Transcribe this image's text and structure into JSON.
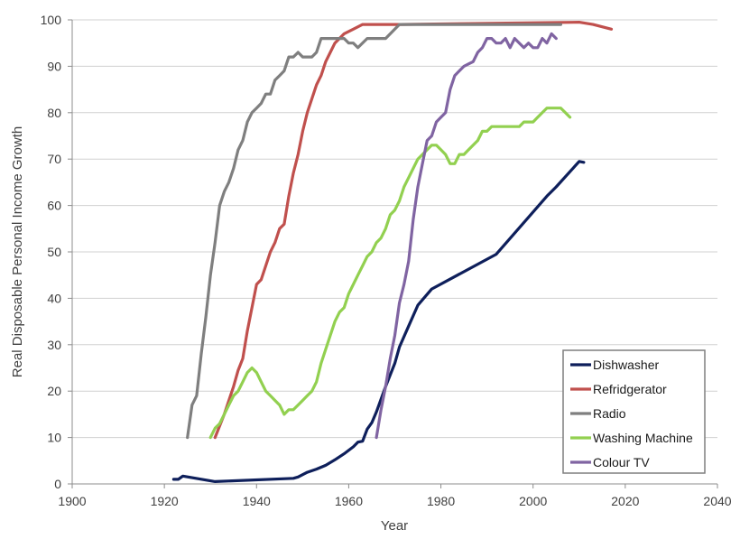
{
  "chart_data": {
    "type": "line",
    "title": "",
    "xlabel": "Year",
    "ylabel": "Real Disposable Personal Income Growth",
    "xlim": [
      1900,
      2040
    ],
    "ylim": [
      0,
      100
    ],
    "x_ticks": [
      1900,
      1920,
      1940,
      1960,
      1980,
      2000,
      2020,
      2040
    ],
    "y_ticks": [
      0,
      10,
      20,
      30,
      40,
      50,
      60,
      70,
      80,
      90,
      100
    ],
    "grid": "horizontal",
    "legend_position": "bottom-right",
    "series": [
      {
        "name": "Dishwasher",
        "color": "#0e1f5b",
        "points": [
          [
            1922,
            1
          ],
          [
            1923,
            1
          ],
          [
            1924,
            1.7
          ],
          [
            1931,
            0.5
          ],
          [
            1948,
            1.2
          ],
          [
            1949,
            1.5
          ],
          [
            1951,
            2.5
          ],
          [
            1953,
            3.2
          ],
          [
            1955,
            4
          ],
          [
            1957,
            5.2
          ],
          [
            1959,
            6.5
          ],
          [
            1961,
            8
          ],
          [
            1962,
            9
          ],
          [
            1963,
            9.2
          ],
          [
            1964,
            11.8
          ],
          [
            1965,
            13.2
          ],
          [
            1966,
            15.5
          ],
          [
            1968,
            21
          ],
          [
            1970,
            26
          ],
          [
            1971,
            29.5
          ],
          [
            1973,
            34
          ],
          [
            1975,
            38.5
          ],
          [
            1978,
            42
          ],
          [
            1992,
            49.5
          ],
          [
            2003,
            62
          ],
          [
            2005,
            64
          ],
          [
            2010,
            69.5
          ],
          [
            2011,
            69.3
          ]
        ]
      },
      {
        "name": "Refridgerator",
        "color": "#c0504d",
        "points": [
          [
            1931,
            10
          ],
          [
            1933,
            15
          ],
          [
            1935,
            21
          ],
          [
            1936,
            24.5
          ],
          [
            1937,
            27
          ],
          [
            1938,
            33
          ],
          [
            1939,
            38
          ],
          [
            1940,
            43
          ],
          [
            1941,
            44
          ],
          [
            1942,
            47
          ],
          [
            1943,
            50
          ],
          [
            1944,
            52
          ],
          [
            1945,
            55
          ],
          [
            1946,
            56
          ],
          [
            1947,
            62
          ],
          [
            1948,
            67
          ],
          [
            1949,
            71
          ],
          [
            1950,
            76
          ],
          [
            1951,
            80
          ],
          [
            1952,
            83
          ],
          [
            1953,
            86
          ],
          [
            1954,
            88
          ],
          [
            1955,
            91
          ],
          [
            1956,
            93
          ],
          [
            1957,
            95
          ],
          [
            1959,
            97
          ],
          [
            1961,
            98
          ],
          [
            1963,
            99
          ],
          [
            1971,
            99
          ],
          [
            2010,
            99.5
          ],
          [
            2013,
            99
          ],
          [
            2017,
            98
          ]
        ]
      },
      {
        "name": "Radio",
        "color": "#7f7f7f",
        "points": [
          [
            1925,
            10
          ],
          [
            1926,
            17
          ],
          [
            1927,
            19
          ],
          [
            1928,
            28
          ],
          [
            1929,
            36
          ],
          [
            1930,
            45
          ],
          [
            1931,
            52
          ],
          [
            1932,
            60
          ],
          [
            1933,
            63
          ],
          [
            1934,
            65
          ],
          [
            1935,
            68
          ],
          [
            1936,
            72
          ],
          [
            1937,
            74
          ],
          [
            1938,
            78
          ],
          [
            1939,
            80
          ],
          [
            1940,
            81
          ],
          [
            1941,
            82
          ],
          [
            1942,
            84
          ],
          [
            1943,
            84
          ],
          [
            1944,
            87
          ],
          [
            1945,
            88
          ],
          [
            1946,
            89
          ],
          [
            1947,
            92
          ],
          [
            1948,
            92
          ],
          [
            1949,
            93
          ],
          [
            1950,
            92
          ],
          [
            1952,
            92
          ],
          [
            1953,
            93
          ],
          [
            1954,
            96
          ],
          [
            1959,
            96
          ],
          [
            1960,
            95
          ],
          [
            1961,
            95
          ],
          [
            1962,
            94
          ],
          [
            1964,
            96
          ],
          [
            1968,
            96
          ],
          [
            1970,
            98
          ],
          [
            1971,
            99
          ],
          [
            2006,
            99
          ]
        ]
      },
      {
        "name": "Washing Machine",
        "color": "#92d050",
        "points": [
          [
            1930,
            10
          ],
          [
            1931,
            12
          ],
          [
            1932,
            13
          ],
          [
            1933,
            15
          ],
          [
            1934,
            17
          ],
          [
            1935,
            19
          ],
          [
            1936,
            20
          ],
          [
            1937,
            22
          ],
          [
            1938,
            24
          ],
          [
            1939,
            25
          ],
          [
            1940,
            24
          ],
          [
            1941,
            22
          ],
          [
            1942,
            20
          ],
          [
            1943,
            19
          ],
          [
            1944,
            18
          ],
          [
            1945,
            17
          ],
          [
            1946,
            15
          ],
          [
            1947,
            16
          ],
          [
            1948,
            16
          ],
          [
            1949,
            17
          ],
          [
            1950,
            18
          ],
          [
            1951,
            19
          ],
          [
            1952,
            20
          ],
          [
            1953,
            22
          ],
          [
            1954,
            26
          ],
          [
            1955,
            29
          ],
          [
            1956,
            32
          ],
          [
            1957,
            35
          ],
          [
            1958,
            37
          ],
          [
            1959,
            38
          ],
          [
            1960,
            41
          ],
          [
            1961,
            43
          ],
          [
            1962,
            45
          ],
          [
            1963,
            47
          ],
          [
            1964,
            49
          ],
          [
            1965,
            50
          ],
          [
            1966,
            52
          ],
          [
            1967,
            53
          ],
          [
            1968,
            55
          ],
          [
            1969,
            58
          ],
          [
            1970,
            59
          ],
          [
            1971,
            61
          ],
          [
            1972,
            64
          ],
          [
            1973,
            66
          ],
          [
            1974,
            68
          ],
          [
            1975,
            70
          ],
          [
            1976,
            71
          ],
          [
            1977,
            72
          ],
          [
            1978,
            73
          ],
          [
            1979,
            73
          ],
          [
            1980,
            72
          ],
          [
            1981,
            71
          ],
          [
            1982,
            69
          ],
          [
            1983,
            69
          ],
          [
            1984,
            71
          ],
          [
            1985,
            71
          ],
          [
            1986,
            72
          ],
          [
            1987,
            73
          ],
          [
            1988,
            74
          ],
          [
            1989,
            76
          ],
          [
            1990,
            76
          ],
          [
            1991,
            77
          ],
          [
            1997,
            77
          ],
          [
            1998,
            78
          ],
          [
            2000,
            78
          ],
          [
            2001,
            79
          ],
          [
            2002,
            80
          ],
          [
            2003,
            81
          ],
          [
            2006,
            81
          ],
          [
            2007,
            80
          ],
          [
            2008,
            79
          ]
        ]
      },
      {
        "name": "Colour TV",
        "color": "#8064a2",
        "points": [
          [
            1966,
            10
          ],
          [
            1967,
            16
          ],
          [
            1968,
            21
          ],
          [
            1969,
            27
          ],
          [
            1970,
            32
          ],
          [
            1971,
            39
          ],
          [
            1972,
            43
          ],
          [
            1973,
            48
          ],
          [
            1974,
            57
          ],
          [
            1975,
            64
          ],
          [
            1976,
            69
          ],
          [
            1977,
            74
          ],
          [
            1978,
            75
          ],
          [
            1979,
            78
          ],
          [
            1980,
            79
          ],
          [
            1981,
            80
          ],
          [
            1982,
            85
          ],
          [
            1983,
            88
          ],
          [
            1984,
            89
          ],
          [
            1985,
            90
          ],
          [
            1986,
            90.5
          ],
          [
            1987,
            91
          ],
          [
            1988,
            93
          ],
          [
            1989,
            94
          ],
          [
            1990,
            96
          ],
          [
            1991,
            96
          ],
          [
            1992,
            95
          ],
          [
            1993,
            95
          ],
          [
            1994,
            96
          ],
          [
            1995,
            94
          ],
          [
            1996,
            96
          ],
          [
            1997,
            95
          ],
          [
            1998,
            94
          ],
          [
            1999,
            95
          ],
          [
            2000,
            94
          ],
          [
            2001,
            94
          ],
          [
            2002,
            96
          ],
          [
            2003,
            95
          ],
          [
            2004,
            97
          ],
          [
            2005,
            96
          ]
        ]
      }
    ]
  }
}
